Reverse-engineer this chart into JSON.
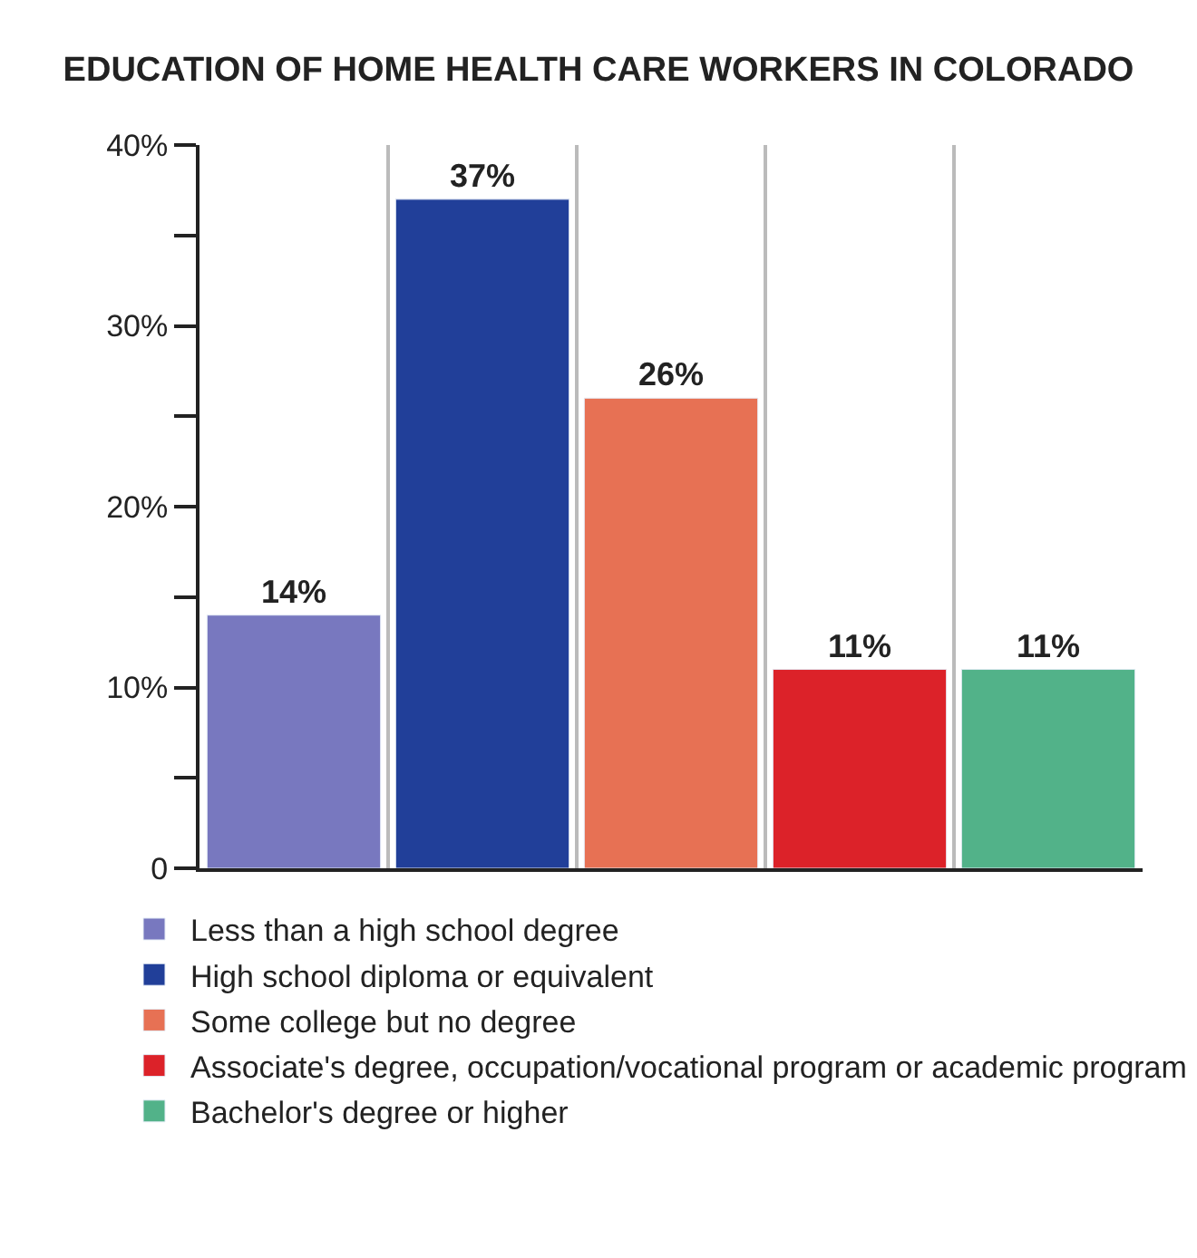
{
  "chart_data": {
    "type": "bar",
    "title": "EDUCATION OF HOME HEALTH CARE WORKERS IN COLORADO",
    "categories": [
      null,
      null,
      null,
      null,
      null
    ],
    "series": [
      {
        "name": "Less than a high school degree",
        "color": "#7878bf",
        "values": [
          14,
          null,
          null,
          null,
          null
        ],
        "value_labels": [
          "14%",
          null,
          null,
          null,
          null
        ]
      },
      {
        "name": "High school diploma or equivalent",
        "color": "#213f99",
        "values": [
          null,
          37,
          null,
          null,
          null
        ],
        "value_labels": [
          null,
          "37%",
          null,
          null,
          null
        ]
      },
      {
        "name": "Some college but no degree",
        "color": "#e77154",
        "values": [
          null,
          null,
          26,
          null,
          null
        ],
        "value_labels": [
          null,
          null,
          "26%",
          null,
          null
        ]
      },
      {
        "name": "Associate's degree, occupation/vocational program or academic program",
        "color": "#dc2229",
        "values": [
          null,
          null,
          null,
          11,
          null
        ],
        "value_labels": [
          null,
          null,
          null,
          "11%",
          null
        ]
      },
      {
        "name": "Bachelor's degree or higher",
        "color": "#52b289",
        "values": [
          null,
          null,
          null,
          null,
          11
        ],
        "value_labels": [
          null,
          null,
          null,
          null,
          "11%"
        ]
      }
    ],
    "ylim": [
      0,
      40
    ],
    "yticks": [
      0,
      {
        "value": 5,
        "label": null
      },
      {
        "value": 10,
        "label": "10%"
      },
      {
        "value": 15,
        "label": null
      },
      {
        "value": 20,
        "label": "20%"
      },
      {
        "value": 25,
        "label": null
      },
      {
        "value": 30,
        "label": "30%"
      },
      {
        "value": 35,
        "label": null
      },
      {
        "value": 40,
        "label": "40%"
      }
    ],
    "grid": "x",
    "legend": "bottom",
    "tick_labels": "y"
  }
}
